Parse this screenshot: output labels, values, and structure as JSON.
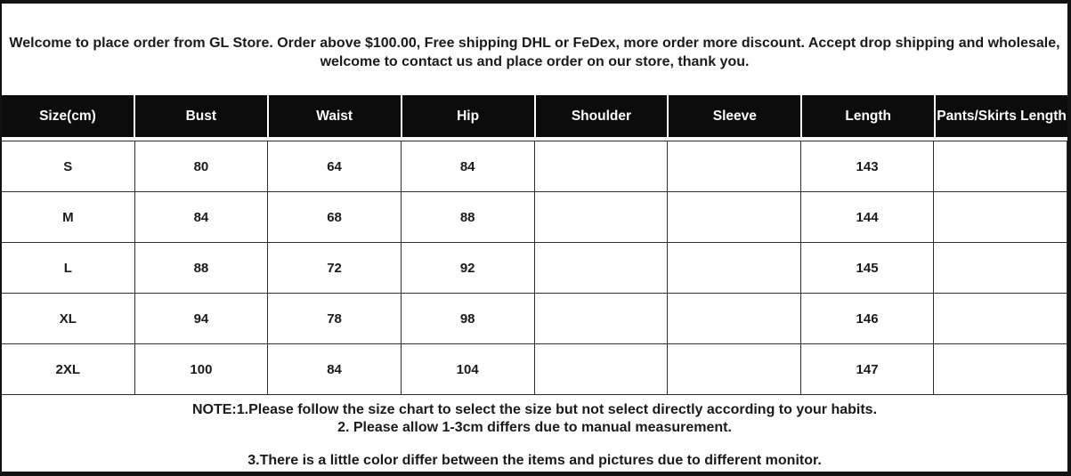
{
  "welcome": {
    "lines": [
      "Welcome to place order from GL Store. Order above $100.00, Free shipping DHL or FeDex, more order more discount. Accept drop shipping and wholesale,",
      "welcome to contact us and place order on our store, thank you."
    ]
  },
  "table": {
    "columns": [
      "Size(cm)",
      "Bust",
      "Waist",
      "Hip",
      "Shoulder",
      "Sleeve",
      "Length",
      "Pants/Skirts Length"
    ],
    "rows": [
      [
        "S",
        "80",
        "64",
        "84",
        "",
        "",
        "143",
        ""
      ],
      [
        "M",
        "84",
        "68",
        "88",
        "",
        "",
        "144",
        ""
      ],
      [
        "L",
        "88",
        "72",
        "92",
        "",
        "",
        "145",
        ""
      ],
      [
        "XL",
        "94",
        "78",
        "98",
        "",
        "",
        "146",
        ""
      ],
      [
        "2XL",
        "100",
        "84",
        "104",
        "",
        "",
        "147",
        ""
      ]
    ]
  },
  "notes": {
    "line1": "NOTE:1.Please follow the size chart to select the size but not select directly according to your habits.",
    "line2": "2. Please allow 1-3cm differs due to manual measurement.",
    "line3": "3.There is a little color differ between the items and pictures due to different monitor."
  },
  "colors": {
    "header_background": "#0c0c0c",
    "header_text": "#ffffff",
    "body_text": "#1a1a1a",
    "border": "#2e2e2e",
    "outer_border": "#121212",
    "background": "#ffffff"
  }
}
